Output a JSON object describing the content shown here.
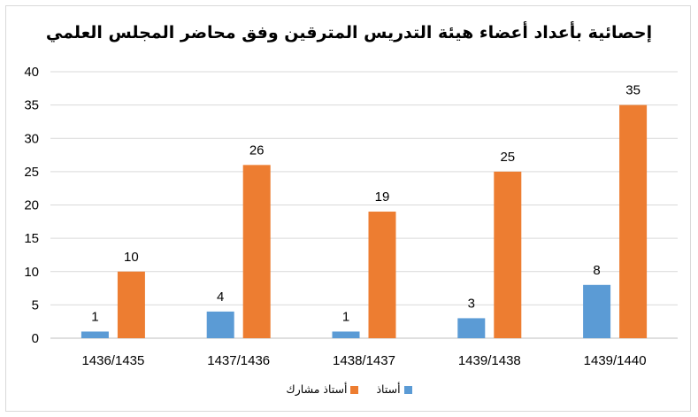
{
  "chart_data": {
    "type": "bar",
    "title": "إحصائية بأعداد أعضاء هيئة التدريس المترقين  وفق محاضر المجلس العلمي",
    "categories": [
      "1436/1435",
      "1437/1436",
      "1438/1437",
      "1439/1438",
      "1439/1440"
    ],
    "series": [
      {
        "name": "أستاذ",
        "color": "#5b9bd5",
        "values": [
          1,
          4,
          1,
          3,
          8
        ]
      },
      {
        "name": "أستاذ مشارك",
        "color": "#ed7d31",
        "values": [
          10,
          26,
          19,
          25,
          35
        ]
      }
    ],
    "ylim": [
      0,
      40
    ],
    "yticks": [
      0,
      5,
      10,
      15,
      20,
      25,
      30,
      35,
      40
    ],
    "grid": true,
    "legend_position": "bottom",
    "data_labels": true
  }
}
